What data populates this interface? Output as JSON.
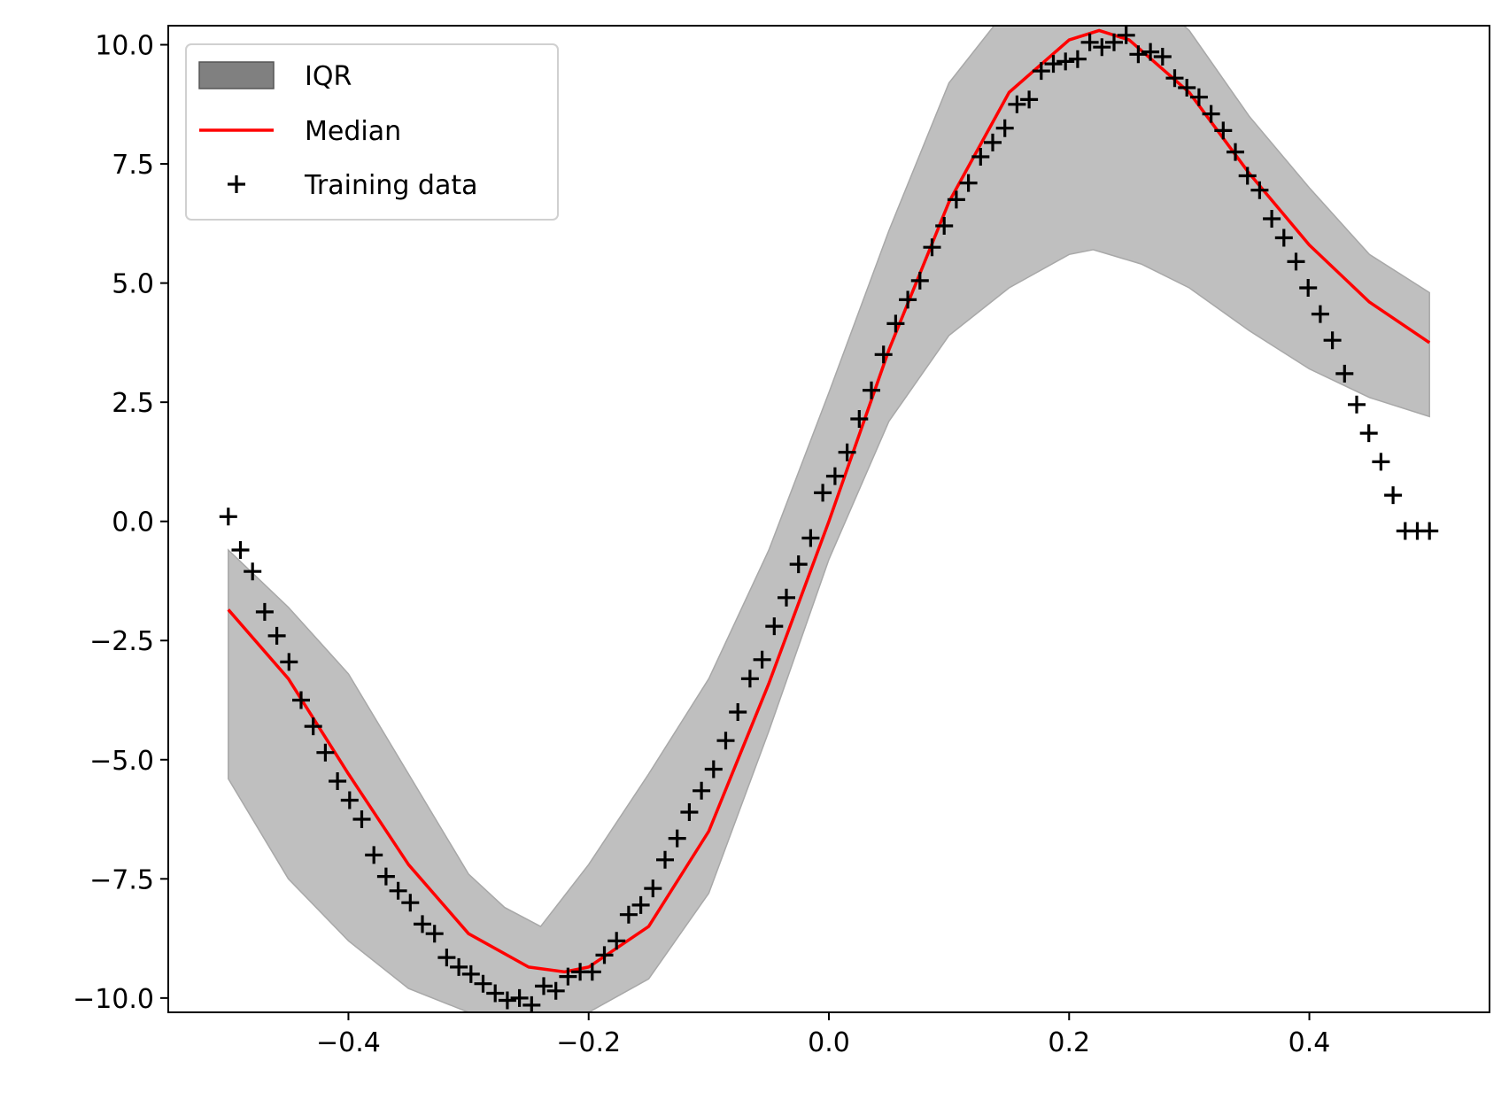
{
  "chart_data": {
    "type": "line",
    "title": "",
    "xlabel": "",
    "ylabel": "",
    "xlim": [
      -0.55,
      0.55
    ],
    "ylim": [
      -10.3,
      10.4
    ],
    "xticks": [
      -0.4,
      -0.2,
      0.0,
      0.2,
      0.4
    ],
    "xtick_labels": [
      "−0.4",
      "−0.2",
      "0.0",
      "0.2",
      "0.4"
    ],
    "yticks": [
      -10.0,
      -7.5,
      -5.0,
      -2.5,
      0.0,
      2.5,
      5.0,
      7.5,
      10.0
    ],
    "ytick_labels": [
      "−10.0",
      "−7.5",
      "−5.0",
      "−2.5",
      "0.0",
      "2.5",
      "5.0",
      "7.5",
      "10.0"
    ],
    "grid": false,
    "legend": {
      "placement": "top-left",
      "entries": [
        {
          "label": "IQR",
          "kind": "patch",
          "color": "#808080"
        },
        {
          "label": "Median",
          "kind": "line",
          "color": "#ff0000"
        },
        {
          "label": "Training data",
          "kind": "marker",
          "marker": "+",
          "color": "#000000"
        }
      ]
    },
    "series": [
      {
        "name": "IQR",
        "kind": "band",
        "color": "#bfbfbf",
        "x": [
          -0.5,
          -0.45,
          -0.4,
          -0.35,
          -0.3,
          -0.27,
          -0.24,
          -0.2,
          -0.15,
          -0.1,
          -0.05,
          0.0,
          0.05,
          0.1,
          0.15,
          0.2,
          0.22,
          0.26,
          0.3,
          0.35,
          0.4,
          0.45,
          0.5
        ],
        "lower": [
          -5.4,
          -7.5,
          -8.8,
          -9.8,
          -10.3,
          -10.4,
          -10.4,
          -10.3,
          -9.6,
          -7.8,
          -4.4,
          -0.8,
          2.1,
          3.9,
          4.9,
          5.6,
          5.7,
          5.4,
          4.9,
          4.0,
          3.2,
          2.6,
          2.2
        ],
        "upper": [
          -0.6,
          -1.8,
          -3.2,
          -5.3,
          -7.4,
          -8.1,
          -8.5,
          -7.2,
          -5.3,
          -3.3,
          -0.6,
          2.7,
          6.1,
          9.2,
          10.8,
          11.5,
          11.6,
          11.2,
          10.3,
          8.5,
          7.0,
          5.6,
          4.8
        ]
      },
      {
        "name": "Median",
        "kind": "line",
        "color": "#ff0000",
        "x": [
          -0.5,
          -0.45,
          -0.4,
          -0.35,
          -0.3,
          -0.25,
          -0.22,
          -0.2,
          -0.15,
          -0.1,
          -0.05,
          0.0,
          0.05,
          0.1,
          0.15,
          0.2,
          0.225,
          0.25,
          0.3,
          0.35,
          0.4,
          0.45,
          0.5
        ],
        "y": [
          -1.85,
          -3.3,
          -5.3,
          -7.2,
          -8.65,
          -9.35,
          -9.45,
          -9.35,
          -8.5,
          -6.5,
          -3.4,
          0.0,
          3.6,
          6.7,
          9.0,
          10.1,
          10.3,
          10.1,
          9.0,
          7.3,
          5.8,
          4.6,
          3.75
        ]
      },
      {
        "name": "Training data",
        "kind": "scatter",
        "marker": "+",
        "color": "#000000",
        "x": [
          -0.5,
          -0.4899,
          -0.4798,
          -0.4697,
          -0.4596,
          -0.4495,
          -0.4394,
          -0.4293,
          -0.4192,
          -0.4091,
          -0.399,
          -0.3889,
          -0.3788,
          -0.3687,
          -0.3586,
          -0.3485,
          -0.3384,
          -0.3283,
          -0.3182,
          -0.3081,
          -0.298,
          -0.2879,
          -0.2778,
          -0.2677,
          -0.2576,
          -0.2475,
          -0.2374,
          -0.2273,
          -0.2172,
          -0.2071,
          -0.197,
          -0.1869,
          -0.1768,
          -0.1667,
          -0.1566,
          -0.1465,
          -0.1364,
          -0.1263,
          -0.1162,
          -0.1061,
          -0.096,
          -0.0859,
          -0.0758,
          -0.0657,
          -0.0556,
          -0.0455,
          -0.0354,
          -0.0253,
          -0.0152,
          -0.0051,
          0.0051,
          0.0152,
          0.0253,
          0.0354,
          0.0455,
          0.0556,
          0.0657,
          0.0758,
          0.0859,
          0.096,
          0.1061,
          0.1162,
          0.1263,
          0.1364,
          0.1465,
          0.1566,
          0.1667,
          0.1768,
          0.1869,
          0.197,
          0.2071,
          0.2172,
          0.2273,
          0.2374,
          0.2475,
          0.2576,
          0.2677,
          0.2778,
          0.2879,
          0.298,
          0.3081,
          0.3182,
          0.3283,
          0.3384,
          0.3485,
          0.3586,
          0.3687,
          0.3788,
          0.3889,
          0.399,
          0.4091,
          0.4192,
          0.4293,
          0.4394,
          0.4495,
          0.4596,
          0.4697,
          0.4798,
          0.4899,
          0.5
        ],
        "y": [
          0.1,
          -0.6,
          -1.05,
          -1.9,
          -2.4,
          -2.95,
          -3.75,
          -4.3,
          -4.85,
          -5.45,
          -5.85,
          -6.25,
          -7.0,
          -7.45,
          -7.75,
          -8.0,
          -8.45,
          -8.65,
          -9.15,
          -9.35,
          -9.5,
          -9.7,
          -9.9,
          -10.05,
          -10.0,
          -10.15,
          -9.75,
          -9.85,
          -9.55,
          -9.45,
          -9.45,
          -9.1,
          -8.8,
          -8.25,
          -8.05,
          -7.7,
          -7.1,
          -6.65,
          -6.1,
          -5.65,
          -5.2,
          -4.6,
          -4.0,
          -3.3,
          -2.9,
          -2.2,
          -1.6,
          -0.9,
          -0.35,
          0.6,
          0.95,
          1.45,
          2.15,
          2.75,
          3.5,
          4.15,
          4.65,
          5.05,
          5.75,
          6.2,
          6.75,
          7.1,
          7.65,
          7.95,
          8.25,
          8.75,
          8.85,
          9.45,
          9.6,
          9.65,
          9.7,
          10.05,
          9.95,
          10.05,
          10.2,
          9.8,
          9.85,
          9.75,
          9.3,
          9.1,
          8.9,
          8.55,
          8.2,
          7.75,
          7.25,
          6.95,
          6.35,
          5.95,
          5.45,
          4.9,
          4.35,
          3.8,
          3.1,
          2.45,
          1.85,
          1.25,
          0.55,
          -0.2,
          -0.2,
          -0.2
        ]
      }
    ]
  }
}
